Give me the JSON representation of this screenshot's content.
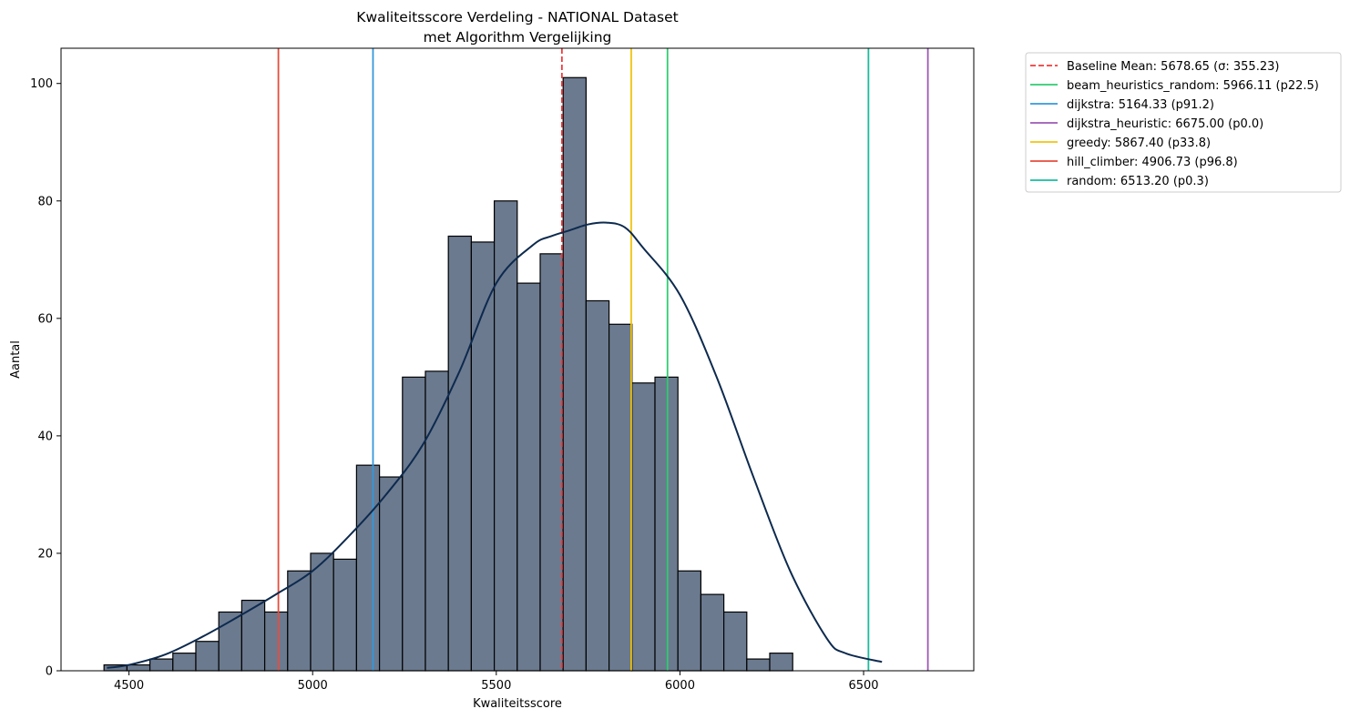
{
  "chart_data": {
    "type": "bar",
    "title": "Kwaliteitsscore Verdeling - NATIONAL Dataset",
    "subtitle": "met Algorithm Vergelijking",
    "xlabel": "Kwaliteitsscore",
    "ylabel": "Aantal",
    "xlim": [
      4315,
      6800
    ],
    "ylim": [
      0,
      106
    ],
    "xticks": [
      4500,
      5000,
      5500,
      6000,
      6500
    ],
    "yticks": [
      0,
      20,
      40,
      60,
      80,
      100
    ],
    "grid": false,
    "legend_position": "outside-top-right",
    "bin_start": 4432,
    "bin_width": 62.5,
    "bar_color": "#6b7a8f",
    "bar_edge_color": "#000000",
    "counts": [
      1,
      1,
      2,
      3,
      5,
      10,
      12,
      10,
      17,
      20,
      19,
      35,
      33,
      50,
      51,
      74,
      73,
      80,
      66,
      71,
      101,
      63,
      59,
      49,
      50,
      17,
      13,
      10,
      2,
      3
    ],
    "kde": {
      "color": "#0d2a4e",
      "x": [
        4440,
        4500,
        4600,
        4700,
        4800,
        4900,
        5000,
        5100,
        5200,
        5300,
        5400,
        5500,
        5600,
        5650,
        5700,
        5750,
        5800,
        5850,
        5900,
        6000,
        6100,
        6200,
        6300,
        6400,
        6450,
        6550
      ],
      "y": [
        0.5,
        1.0,
        2.8,
        5.8,
        9.3,
        13.0,
        17.0,
        23.0,
        30.0,
        38.5,
        51.0,
        66.0,
        72.5,
        74.0,
        75.0,
        76.0,
        76.3,
        75.5,
        72.0,
        64.0,
        50.0,
        33.0,
        17.0,
        5.5,
        3.0,
        1.5
      ]
    },
    "reference_lines": [
      {
        "label": "Baseline Mean: 5678.65 (σ: 355.23)",
        "x": 5678.65,
        "color": "#f03b3b",
        "dashed": true
      },
      {
        "label": "beam_heuristics_random: 5966.11 (p22.5)",
        "x": 5966.11,
        "color": "#2ecc71",
        "dashed": false
      },
      {
        "label": "dijkstra: 5164.33 (p91.2)",
        "x": 5164.33,
        "color": "#3498db",
        "dashed": false
      },
      {
        "label": "dijkstra_heuristic: 6675.00 (p0.0)",
        "x": 6675.0,
        "color": "#9b59b6",
        "dashed": false
      },
      {
        "label": "greedy: 5867.40 (p33.8)",
        "x": 5867.4,
        "color": "#f1c40f",
        "dashed": false
      },
      {
        "label": "hill_climber: 4906.73 (p96.8)",
        "x": 4906.73,
        "color": "#e74c3c",
        "dashed": false
      },
      {
        "label": "random: 6513.20 (p0.3)",
        "x": 6513.2,
        "color": "#1abc9c",
        "dashed": false
      }
    ]
  }
}
